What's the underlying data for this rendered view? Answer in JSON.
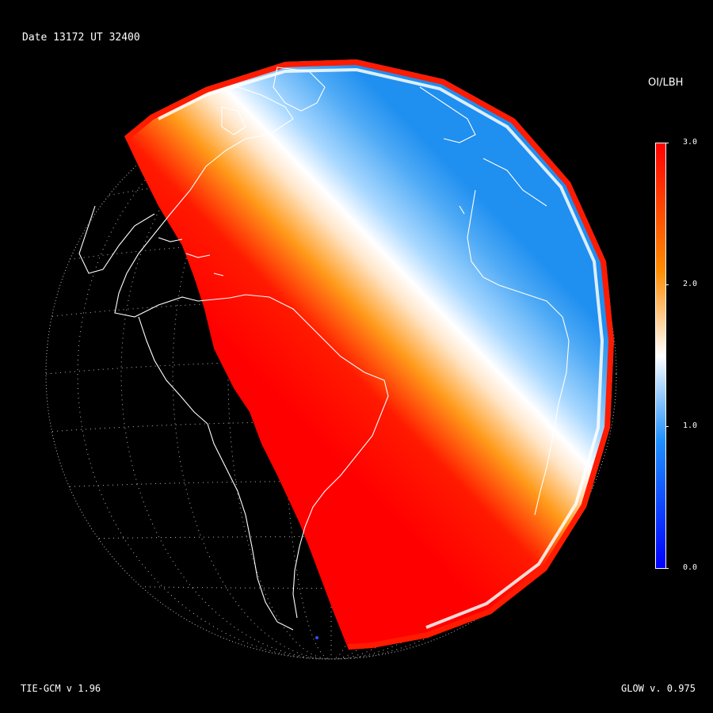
{
  "header": {
    "date_label": "Date 13172  UT 32400"
  },
  "footer": {
    "model_label": "TIE-GCM v 1.96",
    "glow_label": "GLOW v. 0.975"
  },
  "colorbar": {
    "title": "OI/LBH",
    "ticks": [
      "3.0",
      "2.0",
      "1.0",
      "0.0"
    ],
    "range": [
      0.0,
      3.0
    ],
    "colors": {
      "low": "#0000ff",
      "mid_low": "#1e90ff",
      "mid": "#ffffff",
      "mid_high": "#ff8c00",
      "high": "#ff0000"
    }
  },
  "globe": {
    "background": "#000000",
    "grid_color": "#cfcfcf",
    "coast_color": "#ffffff"
  }
}
